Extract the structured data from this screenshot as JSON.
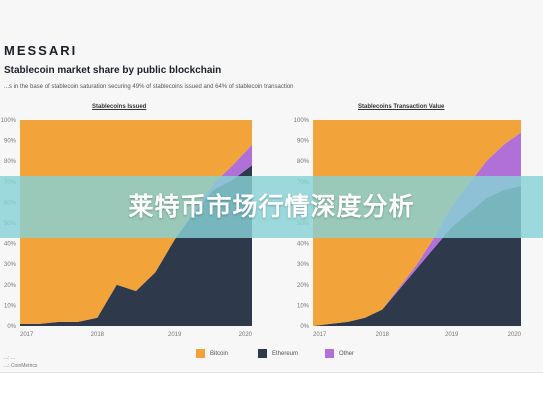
{
  "page": {
    "brand": "MESSARI",
    "title": "Stablecoin market share by public blockchain",
    "subtitle": "...s in the base of stablecoin saturation securing 49% of stablecoins issued and 64% of stablecoin transaction",
    "source": "...: ...\n...: CoinMetrics",
    "banner_text": "莱特币市场行情深度分析"
  },
  "colors": {
    "bitcoin": "#f2a33a",
    "ethereum": "#2e3a4c",
    "other": "#b070d8"
  },
  "legend": [
    {
      "name": "Bitcoin",
      "color": "#f2a33a"
    },
    {
      "name": "Ethereum",
      "color": "#2e3a4c"
    },
    {
      "name": "Other",
      "color": "#b070d8"
    }
  ],
  "chart_data": [
    {
      "type": "area",
      "title": "Stablecoins Issued",
      "stacked": true,
      "normalized": true,
      "ylim": [
        0,
        100
      ],
      "yticks": [
        "0%",
        "10%",
        "20%",
        "30%",
        "40%",
        "50%",
        "60%",
        "70%",
        "80%",
        "90%",
        "100%"
      ],
      "xticks": [
        "2017",
        "2018",
        "2019",
        "2020"
      ],
      "x": [
        2017.0,
        2017.25,
        2017.5,
        2017.75,
        2018.0,
        2018.25,
        2018.5,
        2018.75,
        2019.0,
        2019.25,
        2019.5,
        2019.75,
        2020.0
      ],
      "series": [
        {
          "name": "Ethereum",
          "values": [
            1,
            1,
            2,
            2,
            4,
            20,
            17,
            26,
            42,
            55,
            66,
            71,
            78
          ]
        },
        {
          "name": "Other",
          "values": [
            0,
            0,
            0,
            0,
            0,
            0,
            0,
            0,
            0,
            1,
            3,
            7,
            10
          ]
        },
        {
          "name": "Bitcoin",
          "values": [
            99,
            99,
            98,
            98,
            96,
            80,
            83,
            74,
            58,
            44,
            31,
            22,
            12
          ]
        }
      ],
      "grid": false
    },
    {
      "type": "area",
      "title": "Stablecoins Transaction Value",
      "stacked": true,
      "normalized": true,
      "ylim": [
        0,
        100
      ],
      "yticks": [
        "0%",
        "10%",
        "20%",
        "30%",
        "40%",
        "50%",
        "60%",
        "70%",
        "80%",
        "90%",
        "100%"
      ],
      "xticks": [
        "2017",
        "2018",
        "2019",
        "2020"
      ],
      "x": [
        2017.0,
        2017.25,
        2017.5,
        2017.75,
        2018.0,
        2018.25,
        2018.5,
        2018.75,
        2019.0,
        2019.25,
        2019.5,
        2019.75,
        2020.0
      ],
      "series": [
        {
          "name": "Ethereum",
          "values": [
            0,
            1,
            2,
            4,
            8,
            18,
            28,
            38,
            48,
            55,
            62,
            66,
            68
          ]
        },
        {
          "name": "Other",
          "values": [
            0,
            0,
            0,
            0,
            0,
            1,
            2,
            5,
            10,
            14,
            18,
            22,
            26
          ]
        },
        {
          "name": "Bitcoin",
          "values": [
            100,
            99,
            98,
            96,
            92,
            81,
            70,
            57,
            42,
            31,
            20,
            12,
            6
          ]
        }
      ],
      "grid": false
    }
  ]
}
